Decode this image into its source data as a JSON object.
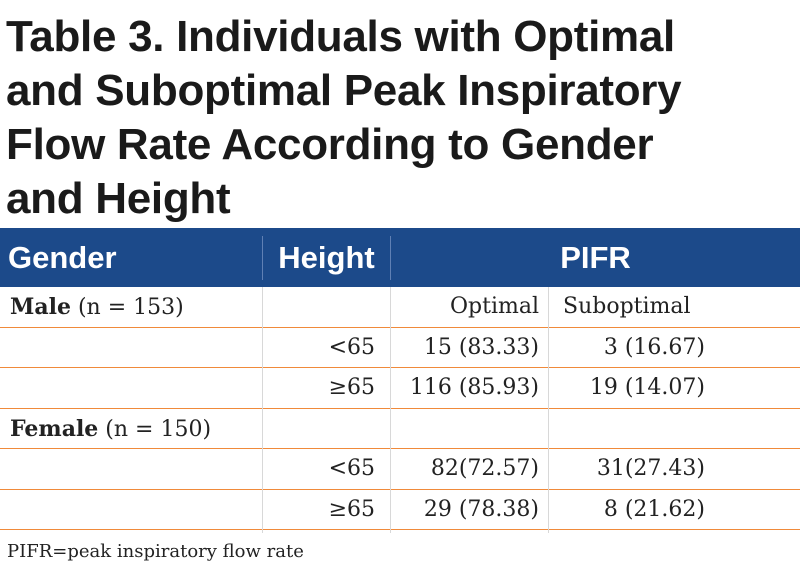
{
  "title_lines": [
    "Table 3. Individuals with Optimal",
    "and Suboptimal Peak Inspiratory",
    "Flow Rate According to Gender",
    "and Height"
  ],
  "header": {
    "gender": "Gender",
    "height": "Height",
    "pifr": "PIFR"
  },
  "rows": [
    {
      "label_bold": "Male",
      "label_rest": " (n = 153)",
      "height": "",
      "optimal": "Optimal",
      "suboptimal": "Suboptimal"
    },
    {
      "label_bold": "",
      "label_rest": "",
      "height": "<65",
      "optimal": "15 (83.33)",
      "suboptimal": "3 (16.67)"
    },
    {
      "label_bold": "",
      "label_rest": "",
      "height": "≥65",
      "optimal": "116 (85.93)",
      "suboptimal": "19 (14.07)"
    },
    {
      "label_bold": "Female",
      "label_rest": " (n = 150)",
      "height": "",
      "optimal": "",
      "suboptimal": ""
    },
    {
      "label_bold": "",
      "label_rest": "",
      "height": "<65",
      "optimal": "82(72.57)",
      "suboptimal": "31(27.43)"
    },
    {
      "label_bold": "",
      "label_rest": "",
      "height": "≥65",
      "optimal": "29 (78.38)",
      "suboptimal": "8 (21.62)"
    }
  ],
  "footnote": "PIFR=peak inspiratory flow rate",
  "colors": {
    "header_bg": "#1c4a8a",
    "row_rule": "#f08a3a"
  }
}
